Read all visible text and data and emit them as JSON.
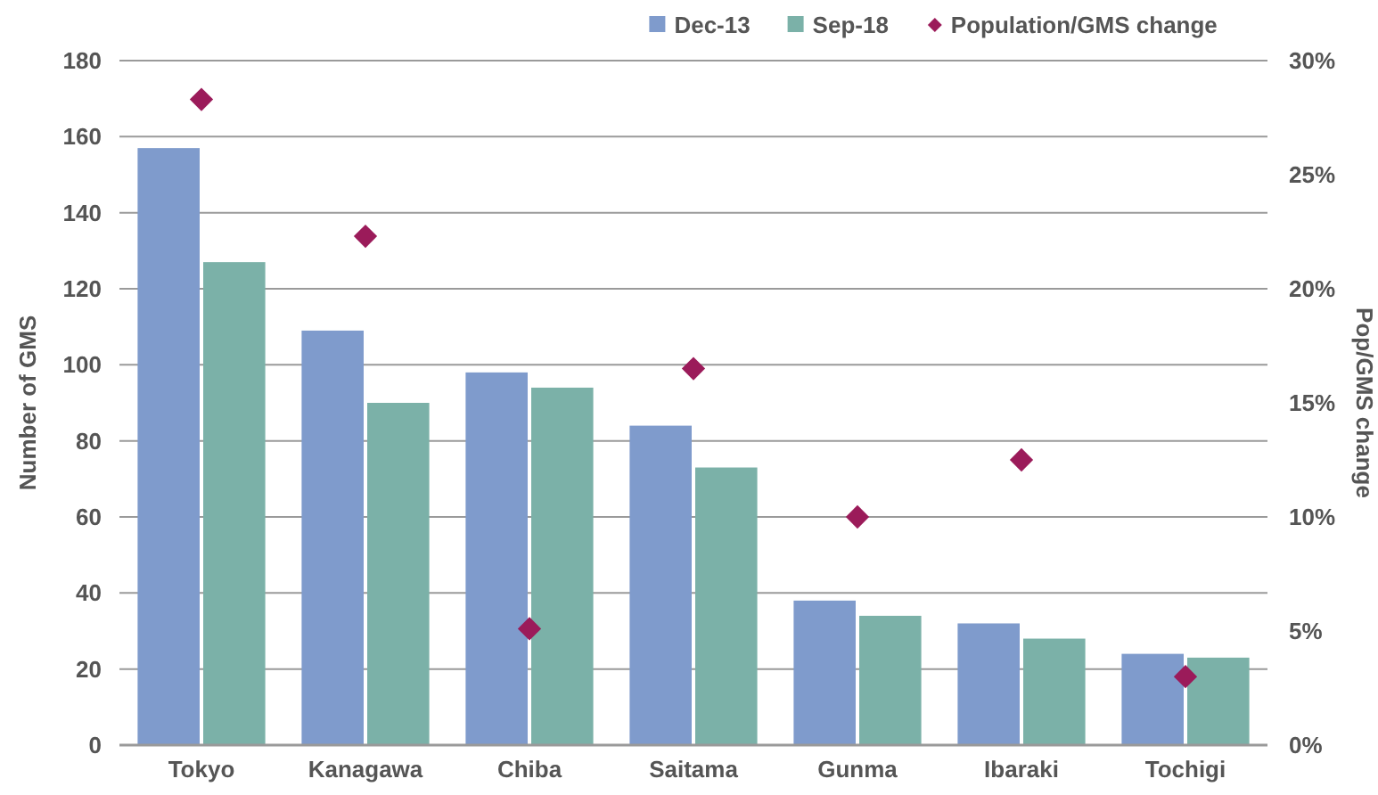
{
  "chart_data": {
    "type": "bar",
    "categories": [
      "Tokyo",
      "Kanagawa",
      "Chiba",
      "Saitama",
      "Gunma",
      "Ibaraki",
      "Tochigi"
    ],
    "series": [
      {
        "name": "Dec-13",
        "color": "#7f9bcc",
        "values": [
          157,
          109,
          98,
          84,
          38,
          32,
          24
        ]
      },
      {
        "name": "Sep-18",
        "color": "#7bb1a8",
        "values": [
          127,
          90,
          94,
          73,
          34,
          28,
          23
        ]
      },
      {
        "name": "Population/GMS change",
        "type": "scatter",
        "axis": "y2",
        "color": "#9b1b5a",
        "values": [
          28.3,
          22.3,
          5.1,
          16.5,
          10.0,
          12.5,
          3.0
        ]
      }
    ],
    "ylabel": "Number of GMS",
    "y2label": "Pop/GMS change",
    "ylim": [
      0,
      180
    ],
    "yticks": [
      0,
      20,
      40,
      60,
      80,
      100,
      120,
      140,
      160,
      180
    ],
    "y2lim": [
      0,
      30
    ],
    "y2ticks": [
      {
        "value": 0,
        "label": "0%"
      },
      {
        "value": 5,
        "label": "5%"
      },
      {
        "value": 10,
        "label": "10%"
      },
      {
        "value": 15,
        "label": "15%"
      },
      {
        "value": 20,
        "label": "20%"
      },
      {
        "value": 25,
        "label": "25%"
      },
      {
        "value": 30,
        "label": "30%"
      }
    ],
    "grid": "y",
    "legend": "top right",
    "marker": "diamond"
  }
}
